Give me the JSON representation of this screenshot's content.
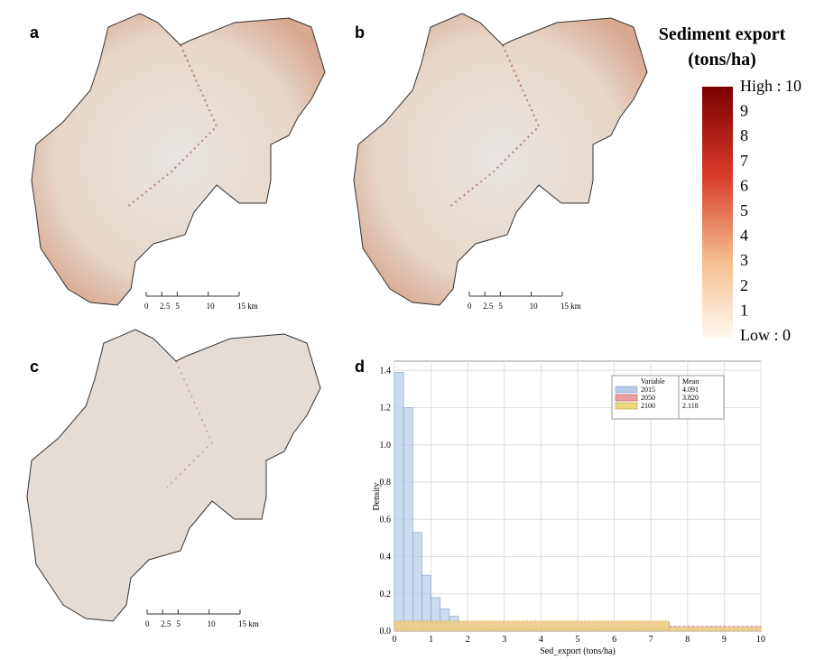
{
  "panel_labels": [
    "a",
    "b",
    "c",
    "d"
  ],
  "scale_bar": {
    "ticks": [
      0,
      2.5,
      5,
      10,
      {
        "value": 15,
        "label": "15 km"
      }
    ]
  },
  "legend": {
    "title": [
      "Sediment export",
      "(tons/ha)"
    ],
    "labels": [
      "High : 10",
      "9",
      "8",
      "7",
      "6",
      "5",
      "4",
      "3",
      "2",
      "1",
      "Low : 0"
    ],
    "colors": [
      "#7a0000",
      "#fff8f0"
    ]
  },
  "chart_data": {
    "type": "histogram",
    "x_label": "Sed_export (tons/ha)",
    "y_label": "Density",
    "xlim": [
      0,
      10
    ],
    "xticks": [
      0,
      1,
      2,
      3,
      4,
      5,
      6,
      7,
      8,
      9,
      10
    ],
    "ylim": [
      0,
      1.45
    ],
    "yticks": [
      {
        "value": 0,
        "label": "0.0"
      },
      0.2,
      0.4,
      0.6,
      0.8,
      {
        "value": 1,
        "label": "1.0"
      },
      1.2,
      1.4
    ],
    "grid": true,
    "legend_headers": [
      "Variable",
      "Mean"
    ],
    "series": [
      {
        "name": "2015",
        "mean": 4.091,
        "color": "#b7cbe6",
        "edge": "#7f9fcf",
        "bins": [
          0,
          0.25,
          0.5,
          0.75,
          1,
          1.25,
          1.5,
          1.75,
          2,
          2.25,
          2.5,
          2.75,
          3,
          3.25,
          3.5,
          3.75,
          4,
          4.25,
          4.5,
          4.75,
          5,
          5.25,
          5.5,
          5.75,
          6,
          6.25,
          6.5,
          6.75,
          7,
          7.25,
          7.5,
          7.75,
          8,
          8.25,
          8.5,
          8.75,
          9,
          9.25,
          9.5,
          9.75,
          10
        ],
        "values": [
          1.39,
          1.2,
          0.53,
          0.3,
          0.18,
          0.12,
          0.08,
          0.05,
          0.03,
          0.02,
          0.01,
          0.01,
          0.01,
          0.01,
          0.01,
          0.01,
          0.01,
          0.01,
          0.01,
          0.01,
          0.01,
          0.01,
          0.01,
          0.01,
          0.01,
          0.01,
          0.01,
          0.01,
          0.01,
          0.01,
          0.005,
          0.005,
          0.005,
          0.005,
          0.005,
          0.005,
          0.005,
          0.005,
          0.005,
          0.005
        ]
      },
      {
        "name": "2050",
        "mean": {
          "value": 3.82,
          "label": "3.820"
        },
        "color": "#e8a0a0",
        "edge": "#c05050",
        "bins": [
          0,
          7.5,
          10
        ],
        "values": [
          0.05,
          0.025
        ]
      },
      {
        "name": "2100",
        "mean": 2.118,
        "color": "#f0d880",
        "edge": "#b0a030",
        "bins": [
          0,
          7.5,
          10
        ],
        "values": [
          0.055,
          0.02
        ]
      }
    ]
  }
}
